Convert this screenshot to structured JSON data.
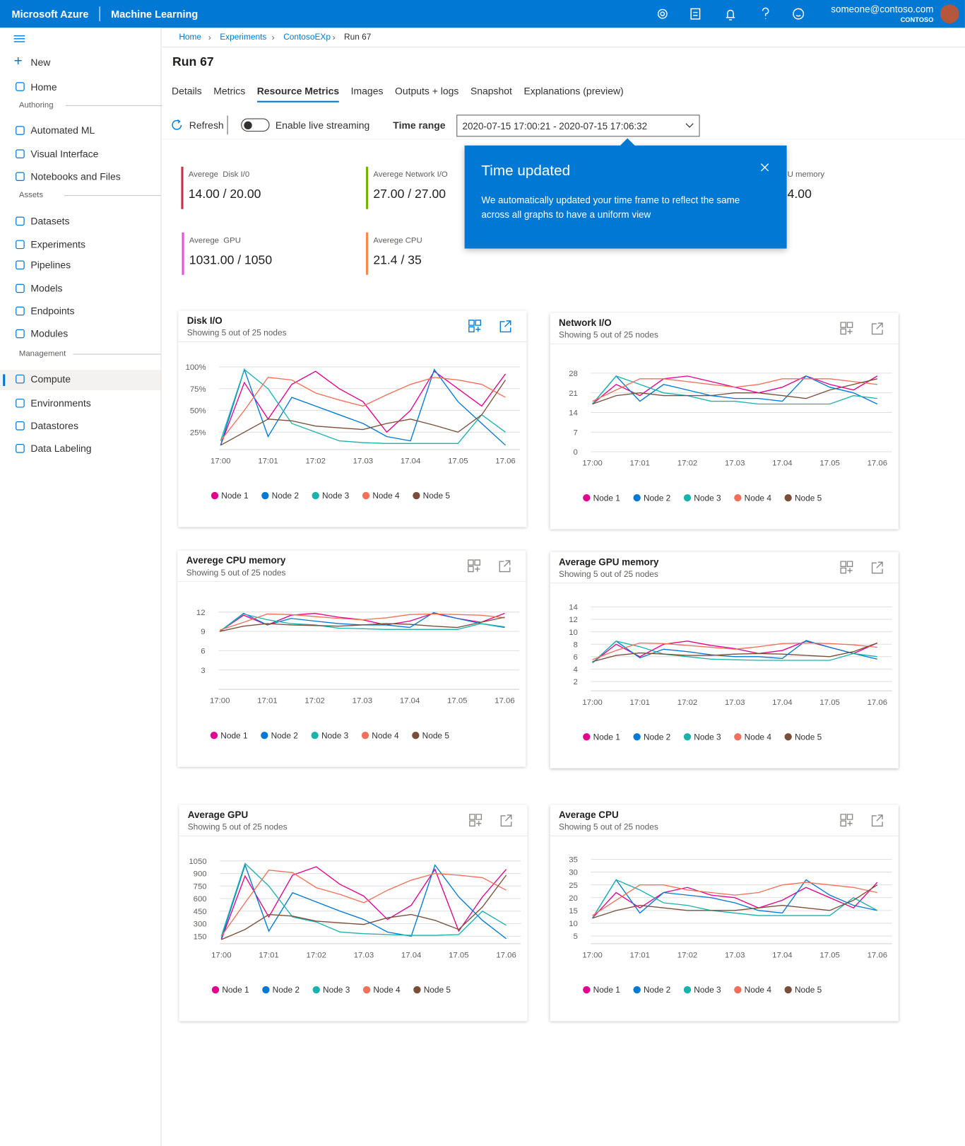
{
  "header": {
    "brand": "Microsoft Azure",
    "product": "Machine Learning",
    "user": "someone@contoso.com",
    "org": "CONTOSO"
  },
  "sidebar": {
    "new": "New",
    "home": "Home",
    "sections": [
      {
        "label": "Authoring",
        "items": [
          "Automated ML",
          "Visual Interface",
          "Notebooks and Files"
        ]
      },
      {
        "label": "Assets",
        "items": [
          "Datasets",
          "Experiments",
          "Pipelines",
          "Models",
          "Endpoints",
          "Modules"
        ]
      },
      {
        "label": "Management",
        "items": [
          "Compute",
          "Environments",
          "Datastores",
          "Data Labeling"
        ]
      }
    ],
    "selected": "Compute"
  },
  "breadcrumb": [
    "Home",
    "Experiments",
    "ContosoEXp",
    "Run 67"
  ],
  "title": "Run 67",
  "tabs": [
    "Details",
    "Metrics",
    "Resource Metrics",
    "Images",
    "Outputs + logs",
    "Snapshot",
    "Explanations (preview)"
  ],
  "selected_tab": "Resource Metrics",
  "toolbar": {
    "refresh": "Refresh",
    "streaming": "Enable live streaming",
    "time_range_label": "Time range",
    "time_range": "2020-07-15 17:00:21 - 2020-07-15 17:06:32"
  },
  "metrics": [
    {
      "label": "Averege  Disk I/0",
      "value": "14.00 / 20.00",
      "color": "#c4314b"
    },
    {
      "label": "Averege Network I/O",
      "value": "27.00 / 27.00",
      "color": "#6bb700"
    },
    {
      "label": "Averege  GPU",
      "value": "1031.00 / 1050",
      "color": "#e650d6"
    },
    {
      "label": "Averege CPU",
      "value": "21.4 / 35",
      "color": "#f7894a"
    }
  ],
  "metric_partial": {
    "label": "U memory",
    "value": "4.00"
  },
  "popup": {
    "title": "Time updated",
    "body": "We automatically updated your time frame to reflect the same across all graphs to have a uniform view"
  },
  "chart_data": [
    {
      "type": "line",
      "title": "Disk I/O",
      "subtitle": "Showing 5 out of 25 nodes",
      "categories": [
        "17:00",
        null,
        "17:01",
        null,
        "17:02",
        null,
        "17.03",
        null,
        "17.04",
        null,
        "17.05",
        null,
        "17.06"
      ],
      "ylim": [
        5,
        105
      ],
      "yticks": [
        {
          "value": 25,
          "label": "25%"
        },
        {
          "value": 50,
          "label": "50%"
        },
        {
          "value": 75,
          "label": "75%"
        },
        {
          "value": 100,
          "label": "100%"
        }
      ],
      "grid": true,
      "series": [
        {
          "name": "Node 1",
          "color": "#e3008c",
          "values": [
            10,
            82,
            40,
            80,
            95,
            75,
            60,
            25,
            50,
            95,
            75,
            55,
            92
          ]
        },
        {
          "name": "Node 2",
          "color": "#0078d4",
          "values": [
            10,
            97,
            20,
            65,
            55,
            45,
            35,
            20,
            15,
            97,
            60,
            35,
            10
          ]
        },
        {
          "name": "Node 3",
          "color": "#1ab2ad",
          "values": [
            15,
            97,
            75,
            35,
            25,
            15,
            13,
            12,
            12,
            12,
            12,
            45,
            25
          ]
        },
        {
          "name": "Node 4",
          "color": "#f2705a",
          "values": [
            15,
            50,
            88,
            85,
            70,
            62,
            55,
            68,
            80,
            88,
            85,
            80,
            65
          ]
        },
        {
          "name": "Node 5",
          "color": "#7a4f3a",
          "values": [
            10,
            25,
            40,
            38,
            32,
            30,
            28,
            35,
            40,
            33,
            25,
            45,
            85
          ]
        }
      ]
    },
    {
      "type": "line",
      "title": "Network I/O",
      "subtitle": "Showing 5 out of 25 nodes",
      "categories": [
        "17:00",
        null,
        "17:01",
        null,
        "17:02",
        null,
        "17.03",
        null,
        "17.04",
        null,
        "17.05",
        null,
        "17.06"
      ],
      "ylim": [
        0,
        31
      ],
      "yticks": [
        0,
        7,
        14,
        21,
        28
      ],
      "grid": true,
      "series": [
        {
          "name": "Node 1",
          "color": "#e3008c",
          "values": [
            17,
            24,
            20,
            26,
            27,
            25,
            23,
            21,
            23,
            27,
            24,
            22,
            27
          ]
        },
        {
          "name": "Node 2",
          "color": "#0078d4",
          "values": [
            17,
            27,
            18,
            24,
            22,
            20,
            19,
            19,
            18,
            27,
            23,
            21,
            17
          ]
        },
        {
          "name": "Node 3",
          "color": "#1ab2ad",
          "values": [
            17,
            27,
            24,
            21,
            20,
            18,
            18,
            17,
            17,
            17,
            17,
            20,
            19
          ]
        },
        {
          "name": "Node 4",
          "color": "#f2705a",
          "values": [
            18,
            22,
            26,
            26,
            25,
            24,
            23,
            24,
            26,
            26,
            26,
            25,
            24
          ]
        },
        {
          "name": "Node 5",
          "color": "#7a4f3a",
          "values": [
            17,
            20,
            21,
            20,
            20,
            20,
            21,
            21,
            20,
            19,
            22,
            24,
            26
          ]
        }
      ]
    },
    {
      "type": "line",
      "title": "Averege CPU memory",
      "subtitle": "Showing 5 out of 25 nodes",
      "categories": [
        "17:00",
        null,
        "17:01",
        null,
        "17:02",
        null,
        "17.03",
        null,
        "17.04",
        null,
        "17.05",
        null,
        "17.06"
      ],
      "ylim": [
        0,
        13.5
      ],
      "yticks": [
        3,
        6,
        9,
        12
      ],
      "grid": true,
      "series": [
        {
          "name": "Node 1",
          "color": "#e3008c",
          "values": [
            9,
            11.5,
            10,
            11.5,
            11.8,
            11.2,
            10.8,
            10,
            10.6,
            11.8,
            11,
            10.4,
            11.8
          ]
        },
        {
          "name": "Node 2",
          "color": "#0078d4",
          "values": [
            9,
            11.8,
            10,
            11,
            10.6,
            10.2,
            10,
            10,
            9.6,
            11.9,
            11,
            10.2,
            9.6
          ]
        },
        {
          "name": "Node 3",
          "color": "#1ab2ad",
          "values": [
            9,
            11.7,
            10.8,
            10.2,
            10,
            9.5,
            9.4,
            9.3,
            9.3,
            9.3,
            9.3,
            10.2,
            9.7
          ]
        },
        {
          "name": "Node 4",
          "color": "#f2705a",
          "values": [
            9.2,
            10.4,
            11.7,
            11.6,
            11.3,
            11,
            10.8,
            11.1,
            11.6,
            11.7,
            11.6,
            11.5,
            11.1
          ]
        },
        {
          "name": "Node 5",
          "color": "#7a4f3a",
          "values": [
            9,
            9.8,
            10.2,
            10,
            9.9,
            9.8,
            10,
            10.2,
            10.1,
            9.8,
            9.6,
            10.4,
            11.2
          ]
        }
      ]
    },
    {
      "type": "line",
      "title": "Average GPU memory",
      "subtitle": "Showing 5 out of 25 nodes",
      "categories": [
        "17:00",
        null,
        "17:01",
        null,
        "17:02",
        null,
        "17.03",
        null,
        "17.04",
        null,
        "17.05",
        null,
        "17.06"
      ],
      "ylim": [
        0.5,
        14.5
      ],
      "yticks": [
        2,
        4,
        6,
        8,
        10,
        12,
        14
      ],
      "grid": true,
      "series": [
        {
          "name": "Node 1",
          "color": "#e3008c",
          "values": [
            5,
            8,
            6,
            8,
            8.5,
            7.8,
            7.3,
            6.5,
            7,
            8.5,
            7.5,
            6.5,
            8.2
          ]
        },
        {
          "name": "Node 2",
          "color": "#0078d4",
          "values": [
            5,
            8.5,
            5.8,
            7.2,
            6.8,
            6.3,
            6,
            6,
            5.7,
            8.6,
            7.5,
            6.5,
            5.6
          ]
        },
        {
          "name": "Node 3",
          "color": "#1ab2ad",
          "values": [
            5,
            8.5,
            7.6,
            6.4,
            6,
            5.6,
            5.5,
            5.4,
            5.4,
            5.4,
            5.4,
            6.5,
            6
          ]
        },
        {
          "name": "Node 4",
          "color": "#f2705a",
          "values": [
            5.5,
            7,
            8.2,
            8.1,
            7.8,
            7.5,
            7.2,
            7.6,
            8.1,
            8.2,
            8.1,
            7.9,
            7.5
          ]
        },
        {
          "name": "Node 5",
          "color": "#7a4f3a",
          "values": [
            5.2,
            6.2,
            6.6,
            6.4,
            6.2,
            6.2,
            6.4,
            6.5,
            6.4,
            6.2,
            6,
            6.8,
            8.2
          ]
        }
      ]
    },
    {
      "type": "line",
      "title": "Average GPU",
      "subtitle": "Showing 5 out of 25 nodes",
      "categories": [
        "17:00",
        null,
        "17:01",
        null,
        "17:02",
        null,
        "17.03",
        null,
        "17.04",
        null,
        "17.05",
        null,
        "17.06"
      ],
      "ylim": [
        60,
        1100
      ],
      "yticks": [
        150,
        300,
        450,
        600,
        750,
        900,
        1050
      ],
      "grid": true,
      "series": [
        {
          "name": "Node 1",
          "color": "#e3008c",
          "values": [
            110,
            870,
            380,
            880,
            980,
            770,
            630,
            350,
            520,
            950,
            210,
            620,
            950
          ]
        },
        {
          "name": "Node 2",
          "color": "#0078d4",
          "values": [
            120,
            1000,
            210,
            670,
            560,
            450,
            350,
            200,
            150,
            1000,
            620,
            340,
            120
          ]
        },
        {
          "name": "Node 3",
          "color": "#1ab2ad",
          "values": [
            150,
            1020,
            750,
            380,
            320,
            200,
            180,
            170,
            160,
            160,
            170,
            450,
            280
          ]
        },
        {
          "name": "Node 4",
          "color": "#f2705a",
          "values": [
            150,
            550,
            940,
            910,
            730,
            650,
            550,
            700,
            820,
            900,
            880,
            850,
            700
          ]
        },
        {
          "name": "Node 5",
          "color": "#7a4f3a",
          "values": [
            110,
            230,
            410,
            390,
            330,
            310,
            290,
            370,
            410,
            340,
            230,
            500,
            880
          ]
        }
      ]
    },
    {
      "type": "line",
      "title": "Average CPU",
      "subtitle": "Showing 5 out of 25 nodes",
      "categories": [
        "17:00",
        null,
        "17:01",
        null,
        "17:02",
        null,
        "17.03",
        null,
        "17.04",
        null,
        "17.05",
        null,
        "17.06"
      ],
      "ylim": [
        2,
        36
      ],
      "yticks": [
        5,
        10,
        15,
        20,
        25,
        30,
        35
      ],
      "grid": true,
      "series": [
        {
          "name": "Node 1",
          "color": "#e3008c",
          "values": [
            12,
            22,
            16,
            22,
            24,
            21,
            20,
            16,
            19,
            24,
            20,
            16,
            26
          ]
        },
        {
          "name": "Node 2",
          "color": "#0078d4",
          "values": [
            12,
            27,
            14,
            22,
            21,
            20,
            18,
            15,
            14,
            27,
            21,
            17,
            15
          ]
        },
        {
          "name": "Node 3",
          "color": "#1ab2ad",
          "values": [
            12,
            27,
            23,
            18,
            17,
            15,
            14,
            13,
            13,
            13,
            13,
            20,
            15
          ]
        },
        {
          "name": "Node 4",
          "color": "#f2705a",
          "values": [
            13,
            19,
            25,
            25,
            23,
            22,
            21,
            22,
            25,
            26,
            25,
            24,
            22
          ]
        },
        {
          "name": "Node 5",
          "color": "#7a4f3a",
          "values": [
            12,
            15,
            17,
            16,
            15,
            15,
            15,
            16,
            17,
            16,
            15,
            19,
            25
          ]
        }
      ]
    }
  ]
}
